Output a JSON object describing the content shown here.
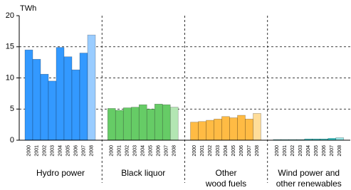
{
  "chart_data": {
    "type": "bar",
    "y_label": "TWh",
    "categories": [
      "2000",
      "2001",
      "2002",
      "2003",
      "2004",
      "2005",
      "2006",
      "2007",
      "2008"
    ],
    "series": [
      {
        "name": "Hydro power",
        "color": "#3399ff",
        "last_color": "#99ccff",
        "values": [
          14.5,
          13.0,
          10.6,
          9.5,
          14.9,
          13.4,
          11.3,
          14.0,
          16.9
        ]
      },
      {
        "name": "Black liquor",
        "color": "#66cc66",
        "last_color": "#b3e6b3",
        "values": [
          5.1,
          4.8,
          5.2,
          5.3,
          5.7,
          5.0,
          5.8,
          5.7,
          5.3
        ]
      },
      {
        "name": "Other\nwood fuels",
        "color": "#ffbb44",
        "last_color": "#ffdd99",
        "values": [
          2.9,
          3.0,
          3.2,
          3.4,
          3.8,
          3.6,
          4.0,
          3.4,
          4.3
        ]
      },
      {
        "name": "Wind power and\nother renewables",
        "color": "#33cccc",
        "last_color": "#99e6e6",
        "values": [
          0.1,
          0.1,
          0.1,
          0.1,
          0.2,
          0.2,
          0.2,
          0.3,
          0.4
        ]
      }
    ],
    "ylim": [
      0,
      20
    ],
    "yticks": [
      0,
      5,
      10,
      15,
      20
    ],
    "grid": true
  }
}
